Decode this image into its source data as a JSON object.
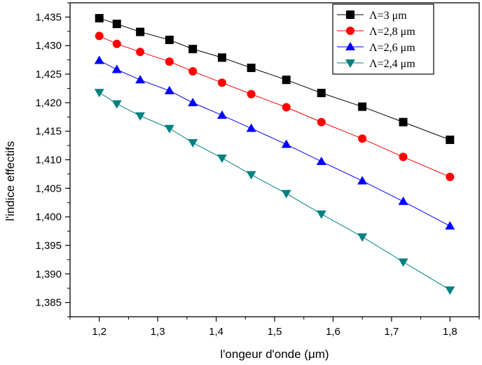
{
  "chart_data": {
    "type": "line",
    "xlabel": "l'ongeur d'onde (μm)",
    "ylabel": "l'indice effectifs",
    "xlim": [
      1.15,
      1.85
    ],
    "ylim": [
      1.3825,
      1.4375
    ],
    "x_ticks": [
      "1,2",
      "1,3",
      "1,4",
      "1,5",
      "1,6",
      "1,7",
      "1,8"
    ],
    "y_ticks": [
      "1,385",
      "1,390",
      "1,395",
      "1,400",
      "1,405",
      "1,410",
      "1,415",
      "1,420",
      "1,425",
      "1,430",
      "1,435"
    ],
    "x_minor_ticks": true,
    "y_minor_ticks": true,
    "grid": false,
    "legend_position": "top-right",
    "x": [
      1.2,
      1.23,
      1.27,
      1.32,
      1.36,
      1.41,
      1.46,
      1.52,
      1.58,
      1.65,
      1.72,
      1.8
    ],
    "series": [
      {
        "name": "Λ=3 μm",
        "color": "#000000",
        "marker": "square",
        "values": [
          1.4348,
          1.4338,
          1.4324,
          1.431,
          1.4294,
          1.4279,
          1.4261,
          1.424,
          1.4217,
          1.4193,
          1.4166,
          1.4135
        ]
      },
      {
        "name": "Λ=2,8 μm",
        "color": "#ff0000",
        "marker": "circle",
        "values": [
          1.4317,
          1.4303,
          1.4289,
          1.4272,
          1.4255,
          1.4235,
          1.4215,
          1.4192,
          1.4166,
          1.4137,
          1.4105,
          1.407
        ]
      },
      {
        "name": "Λ=2,6 μm",
        "color": "#0000ff",
        "marker": "triangle-up",
        "values": [
          1.4274,
          1.4258,
          1.424,
          1.4221,
          1.42,
          1.4178,
          1.4155,
          1.4127,
          1.4097,
          1.4063,
          1.4027,
          1.3984
        ]
      },
      {
        "name": "Λ=2,4 μm",
        "color": "#008080",
        "marker": "triangle-down",
        "values": [
          1.4218,
          1.4198,
          1.4177,
          1.4155,
          1.413,
          1.4103,
          1.4074,
          1.4041,
          1.4005,
          1.3965,
          1.3921,
          1.3872
        ]
      }
    ]
  }
}
